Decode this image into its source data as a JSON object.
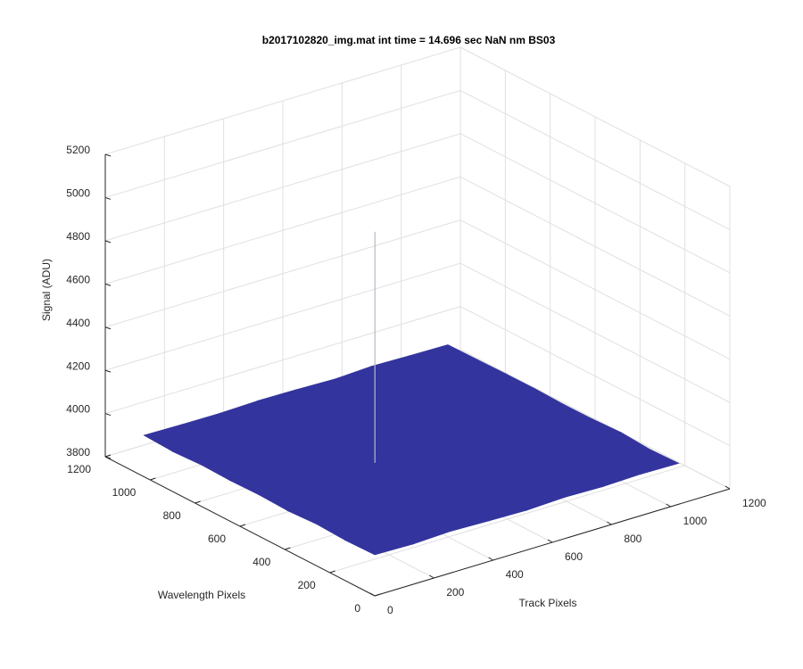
{
  "chart_data": {
    "type": "surface",
    "title": "b2017102820_img.mat int time = 14.696 sec  NaN nm BS03",
    "xlabel": "Track Pixels",
    "ylabel": "Wavelength Pixels",
    "zlabel": "Signal (ADU)",
    "x": [
      0,
      128,
      256,
      384,
      512,
      640,
      768,
      896,
      1024
    ],
    "y": [
      0,
      128,
      256,
      384,
      512,
      640,
      768,
      896,
      1024
    ],
    "z": [
      [
        3992,
        3988,
        3995,
        3990,
        3986,
        3993,
        3989,
        3994,
        3991
      ],
      [
        3989,
        3994,
        3987,
        3992,
        3996,
        3988,
        3993,
        3990,
        3987
      ],
      [
        3995,
        3990,
        3993,
        3988,
        3991,
        3994,
        3987,
        3992,
        3996
      ],
      [
        3988,
        3993,
        3990,
        3995,
        3989,
        3992,
        3996,
        3988,
        3990
      ],
      [
        3993,
        3987,
        3994,
        3991,
        3993,
        3988,
        3990,
        3995,
        3989
      ],
      [
        3990,
        3995,
        3988,
        3993,
        3987,
        3994,
        3991,
        3989,
        3993
      ],
      [
        3994,
        3989,
        3992,
        3987,
        3995,
        3990,
        3993,
        3988,
        3992
      ],
      [
        3987,
        3992,
        3996,
        3990,
        3988,
        3993,
        3989,
        3994,
        3990
      ],
      [
        3993,
        3990,
        3989,
        3994,
        3992,
        3987,
        3995,
        3991,
        3988
      ]
    ],
    "spike": {
      "x": 380,
      "y": 500,
      "z": 5060
    },
    "color": "#34349e",
    "xlim": [
      0,
      1200
    ],
    "ylim": [
      0,
      1200
    ],
    "zlim": [
      3800,
      5200
    ],
    "xticks": [
      0,
      200,
      400,
      600,
      800,
      1000,
      1200
    ],
    "yticks": [
      0,
      200,
      400,
      600,
      800,
      1000,
      1200
    ],
    "zticks": [
      3800,
      4000,
      4200,
      4400,
      4600,
      4800,
      5000,
      5200
    ],
    "grid": true
  }
}
